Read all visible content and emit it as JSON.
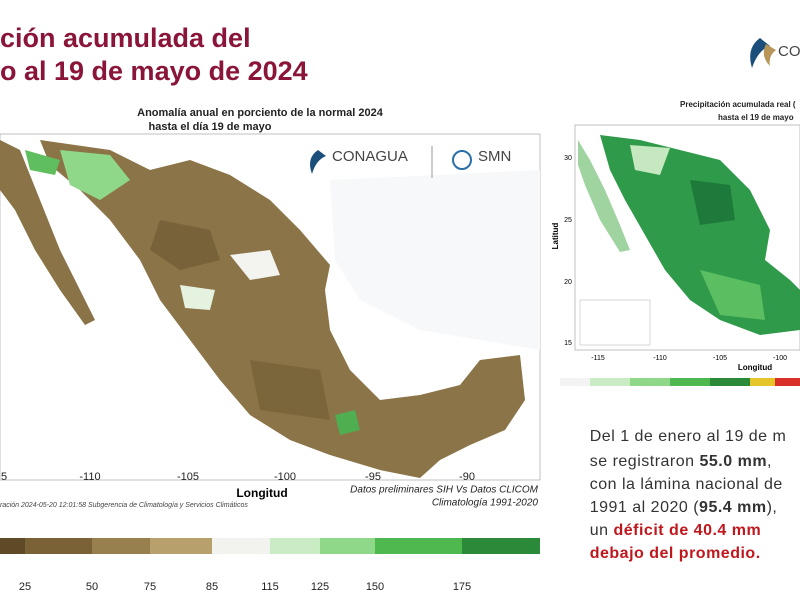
{
  "header": {
    "title_lines": [
      "ción acumulada del",
      "o al 19 de mayo de 2024"
    ],
    "logo": "CONA"
  },
  "left_map": {
    "title": "Anomalía anual en porciento de la normal 2024",
    "subtitle": "hasta el día 19 de mayo",
    "logos": [
      "CONAGUA",
      "SMN"
    ],
    "x_ticks": [
      "5",
      "-110",
      "-105",
      "-100",
      "-95",
      "-90"
    ],
    "x_label": "Longitud",
    "source": "Datos preliminares SIH Vs Datos CLICOM",
    "climatology": "Climatología 1991-2020",
    "footnote": "ración 2024-05-20 12:01:58 Subgerencia de Climatología y Servicios Climáticos",
    "legend_ticks": [
      "25",
      "50",
      "75",
      "85",
      "115",
      "125",
      "150",
      "175"
    ]
  },
  "right_map": {
    "title": "Precipitación acumulada real (",
    "subtitle": "hasta el 19 de mayo",
    "y_label": "Latitud",
    "y_ticks": [
      "30",
      "25",
      "20",
      "15"
    ],
    "x_ticks": [
      "-115",
      "-110",
      "-105",
      "-100"
    ],
    "x_label": "Longitud"
  },
  "summary": {
    "lines": [
      [
        "Del 1 de enero al 19 de m"
      ],
      [
        "se registraron ",
        "55.0 mm",
        ","
      ],
      [
        "con la lámina nacional de"
      ],
      [
        "1991 al 2020 (",
        "95.4 mm",
        "),"
      ],
      [
        "un ",
        "déficit de 40.4 mm"
      ],
      [
        "debajo del promedio."
      ]
    ]
  }
}
